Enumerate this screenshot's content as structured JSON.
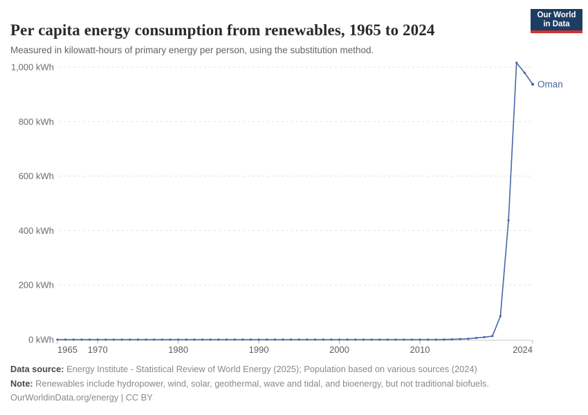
{
  "header": {
    "title": "Per capita energy consumption from renewables, 1965 to 2024",
    "subtitle": "Measured in kilowatt-hours of primary energy per person, using the substitution method."
  },
  "logo": {
    "line1": "Our World",
    "line2": "in Data",
    "bg_color": "#1d3d63",
    "stripe_color": "#d0342c"
  },
  "chart_data": {
    "type": "line",
    "title": "Per capita energy consumption from renewables, 1965 to 2024",
    "ylabel": "",
    "xlabel": "",
    "ylim": [
      0,
      1050
    ],
    "x_range": [
      1965,
      2024
    ],
    "grid": "horizontal-dashed",
    "legend": "end-of-line-label",
    "yticks": [
      0,
      200,
      400,
      600,
      800,
      1000
    ],
    "ytick_labels": [
      "0 kWh",
      "200 kWh",
      "400 kWh",
      "600 kWh",
      "800 kWh",
      "1,000 kWh"
    ],
    "xticks": [
      1965,
      1970,
      1980,
      1990,
      2000,
      2010,
      2024
    ],
    "xtick_labels": [
      "1965",
      "1970",
      "1980",
      "1990",
      "2000",
      "2010",
      "2024"
    ],
    "series": [
      {
        "name": "Oman",
        "end_label": "Oman",
        "color": "#4666a4",
        "x": [
          1965,
          1966,
          1967,
          1968,
          1969,
          1970,
          1971,
          1972,
          1973,
          1974,
          1975,
          1976,
          1977,
          1978,
          1979,
          1980,
          1981,
          1982,
          1983,
          1984,
          1985,
          1986,
          1987,
          1988,
          1989,
          1990,
          1991,
          1992,
          1993,
          1994,
          1995,
          1996,
          1997,
          1998,
          1999,
          2000,
          2001,
          2002,
          2003,
          2004,
          2005,
          2006,
          2007,
          2008,
          2009,
          2010,
          2011,
          2012,
          2013,
          2014,
          2015,
          2016,
          2017,
          2018,
          2019,
          2020,
          2021,
          2022,
          2023,
          2024
        ],
        "values": [
          0,
          0,
          0,
          0,
          0,
          0,
          0,
          0,
          0,
          0,
          0,
          0,
          0,
          0,
          0,
          0,
          0,
          0,
          0,
          0,
          0,
          0,
          0,
          0,
          0,
          0,
          0,
          0,
          0,
          0,
          0,
          0,
          0,
          0,
          0,
          0,
          0,
          0,
          0,
          0,
          0,
          0,
          0,
          0,
          0,
          0,
          0,
          0,
          0.4,
          1,
          2,
          3,
          6,
          9,
          13,
          86,
          438,
          1016,
          979,
          937
        ]
      }
    ]
  },
  "style": {
    "grid_color": "#e0e0e0",
    "axis_color": "#c4c4c4",
    "tick_color": "#b4b4b4",
    "ytick_label_color": "#6b6b71",
    "xtick_label_color": "#5b5b61"
  },
  "footer": {
    "datasource_label": "Data source:",
    "datasource_text": " Energy Institute - Statistical Review of World Energy (2025); Population based on various sources (2024)",
    "note_label": "Note:",
    "note_text": " Renewables include hydropower, wind, solar, geothermal, wave and tidal, and bioenergy, but not traditional biofuels.",
    "link": "OurWorldinData.org/energy",
    "separator": " | ",
    "license": "CC BY"
  }
}
